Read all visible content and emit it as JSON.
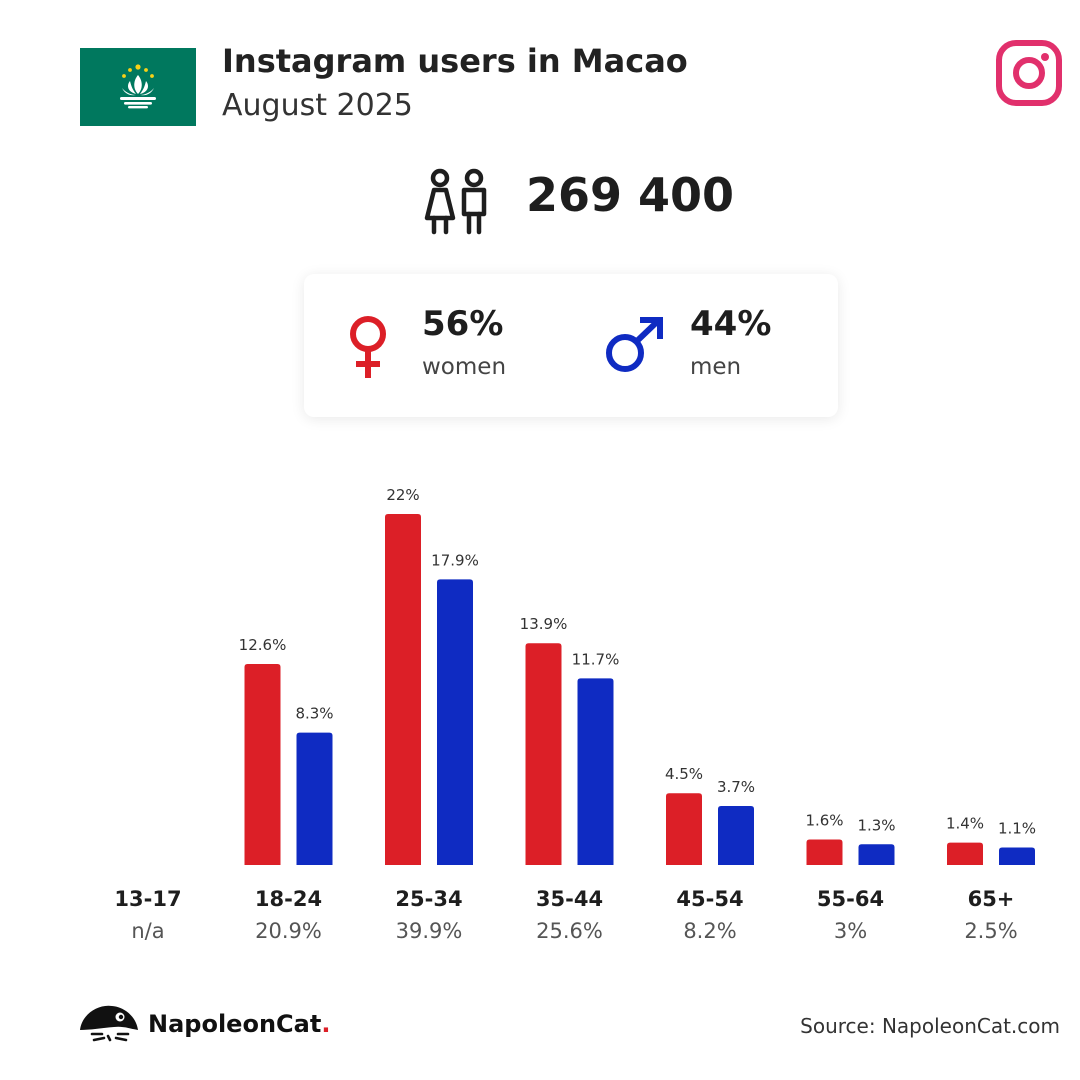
{
  "header": {
    "title": "Instagram users in Macao",
    "subtitle": "August 2025"
  },
  "summary": {
    "total_users": "269 400",
    "women": {
      "pct": "56%",
      "label": "women"
    },
    "men": {
      "pct": "44%",
      "label": "men"
    }
  },
  "colors": {
    "women": "#dc1f27",
    "men": "#0f2bc2",
    "flag_green": "#00785e",
    "instagram_pink": "#e1306c"
  },
  "icons": [
    "macao-flag-icon",
    "instagram-icon",
    "people-icon",
    "female-symbol-icon",
    "male-symbol-icon",
    "napoleoncat-logo-icon"
  ],
  "chart_data": {
    "type": "bar",
    "categories": [
      "13-17",
      "18-24",
      "25-34",
      "35-44",
      "45-54",
      "55-64",
      "65+"
    ],
    "category_totals": [
      "n/a",
      "20.9%",
      "39.9%",
      "25.6%",
      "8.2%",
      "3%",
      "2.5%"
    ],
    "series": [
      {
        "key": "women",
        "values": [
          null,
          12.6,
          22,
          13.9,
          4.5,
          1.6,
          1.4
        ],
        "labels": [
          "",
          "12.6%",
          "22%",
          "13.9%",
          "4.5%",
          "1.6%",
          "1.4%"
        ]
      },
      {
        "key": "men",
        "values": [
          null,
          8.3,
          17.9,
          11.7,
          3.7,
          1.3,
          1.1
        ],
        "labels": [
          "",
          "8.3%",
          "17.9%",
          "11.7%",
          "3.7%",
          "1.3%",
          "1.1%"
        ]
      }
    ],
    "ylim": [
      0,
      22
    ],
    "grid": false
  },
  "footer": {
    "brand": "NapoleonCat",
    "brand_dot": ".",
    "source": "Source: NapoleonCat.com"
  }
}
